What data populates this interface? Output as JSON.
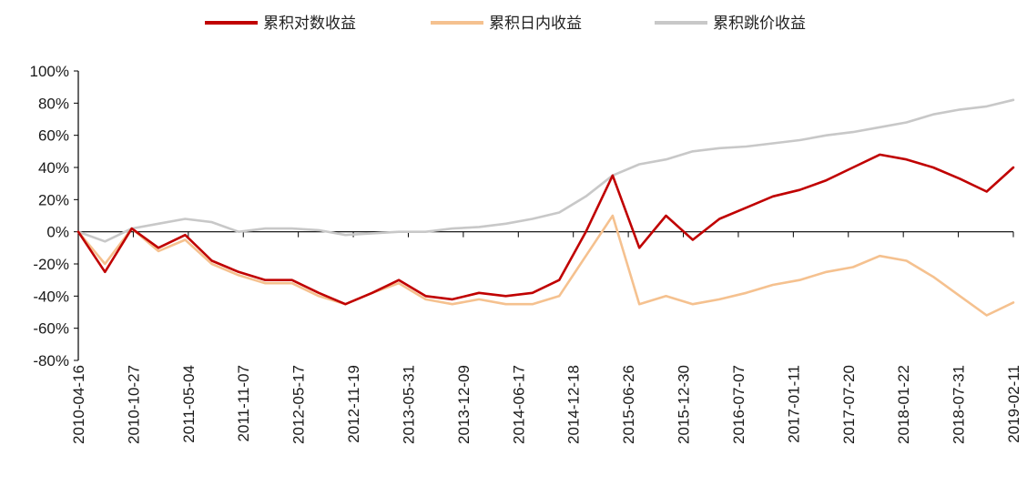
{
  "chart_data": {
    "type": "line",
    "title": "",
    "xlabel": "",
    "ylabel": "",
    "ylim": [
      -80,
      100
    ],
    "yticks": [
      "100%",
      "80%",
      "60%",
      "40%",
      "20%",
      "0%",
      "-20%",
      "-40%",
      "-60%",
      "-80%"
    ],
    "xticks": [
      "2010-04-16",
      "2010-10-27",
      "2011-05-04",
      "2011-11-07",
      "2012-05-17",
      "2012-11-19",
      "2013-05-31",
      "2013-12-09",
      "2014-06-17",
      "2014-12-18",
      "2015-06-26",
      "2015-12-30",
      "2016-07-07",
      "2017-01-11",
      "2017-07-20",
      "2018-01-22",
      "2018-07-31",
      "2019-02-11"
    ],
    "grid": false,
    "legend_position": "top-center",
    "x": [
      "2010-04-16",
      "2010-07-22",
      "2010-10-27",
      "2011-01-31",
      "2011-05-04",
      "2011-08-08",
      "2011-11-07",
      "2012-02-13",
      "2012-05-17",
      "2012-08-20",
      "2012-11-19",
      "2013-02-27",
      "2013-05-31",
      "2013-09-05",
      "2013-12-09",
      "2014-03-17",
      "2014-06-17",
      "2014-09-17",
      "2014-12-18",
      "2015-03-26",
      "2015-06-26",
      "2015-09-30",
      "2015-12-30",
      "2016-04-07",
      "2016-07-07",
      "2016-10-11",
      "2017-01-11",
      "2017-04-18",
      "2017-07-20",
      "2017-10-24",
      "2018-01-22",
      "2018-04-30",
      "2018-07-31",
      "2018-11-05",
      "2019-02-11",
      "2019-03-29"
    ],
    "series": [
      {
        "name": "累积对数收益",
        "color": "#c00000",
        "values": [
          0,
          -25,
          2,
          -10,
          -2,
          -18,
          -25,
          -30,
          -30,
          -38,
          -45,
          -38,
          -30,
          -40,
          -42,
          -38,
          -40,
          -38,
          -30,
          0,
          35,
          -10,
          10,
          -5,
          8,
          15,
          22,
          26,
          32,
          40,
          48,
          45,
          40,
          33,
          25,
          40
        ]
      },
      {
        "name": "累积日内收益",
        "color": "#f5c18f",
        "values": [
          0,
          -20,
          2,
          -12,
          -5,
          -20,
          -27,
          -32,
          -32,
          -40,
          -45,
          -38,
          -32,
          -42,
          -45,
          -42,
          -45,
          -45,
          -40,
          -15,
          10,
          -45,
          -40,
          -45,
          -42,
          -38,
          -33,
          -30,
          -25,
          -22,
          -15,
          -18,
          -28,
          -40,
          -52,
          -44
        ]
      },
      {
        "name": "累积跳价收益",
        "color": "#c8c8c8",
        "values": [
          0,
          -6,
          2,
          5,
          8,
          6,
          0,
          2,
          2,
          1,
          -2,
          -1,
          0,
          0,
          2,
          3,
          5,
          8,
          12,
          22,
          35,
          42,
          45,
          50,
          52,
          53,
          55,
          57,
          60,
          62,
          65,
          68,
          73,
          76,
          78,
          82
        ]
      }
    ]
  }
}
